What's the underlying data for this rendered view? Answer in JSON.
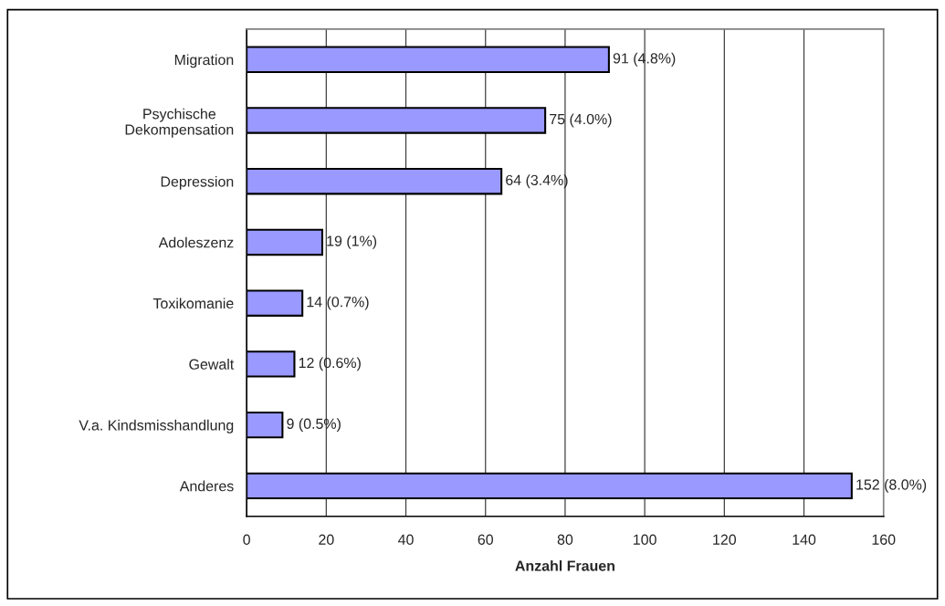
{
  "chart_data": {
    "type": "bar",
    "orientation": "horizontal",
    "categories": [
      "Migration",
      "Psychische\nDekompensation",
      "Depression",
      "Adoleszenz",
      "Toxikomanie",
      "Gewalt",
      "V.a. Kindsmisshandlung",
      "Anderes"
    ],
    "values": [
      91,
      75,
      64,
      19,
      14,
      12,
      9,
      152
    ],
    "value_labels": [
      "91 (4.8%)",
      "75 (4.0%)",
      "64 (3.4%)",
      "19 (1%)",
      "14 (0.7%)",
      "12 (0.6%)",
      "9 (0.5%)",
      "152 (8.0%)"
    ],
    "color": "#9999ff",
    "xlabel": "Anzahl Frauen",
    "xlim": [
      0,
      160
    ],
    "xticks": [
      0,
      20,
      40,
      60,
      80,
      100,
      120,
      140,
      160
    ],
    "grid": "x"
  }
}
